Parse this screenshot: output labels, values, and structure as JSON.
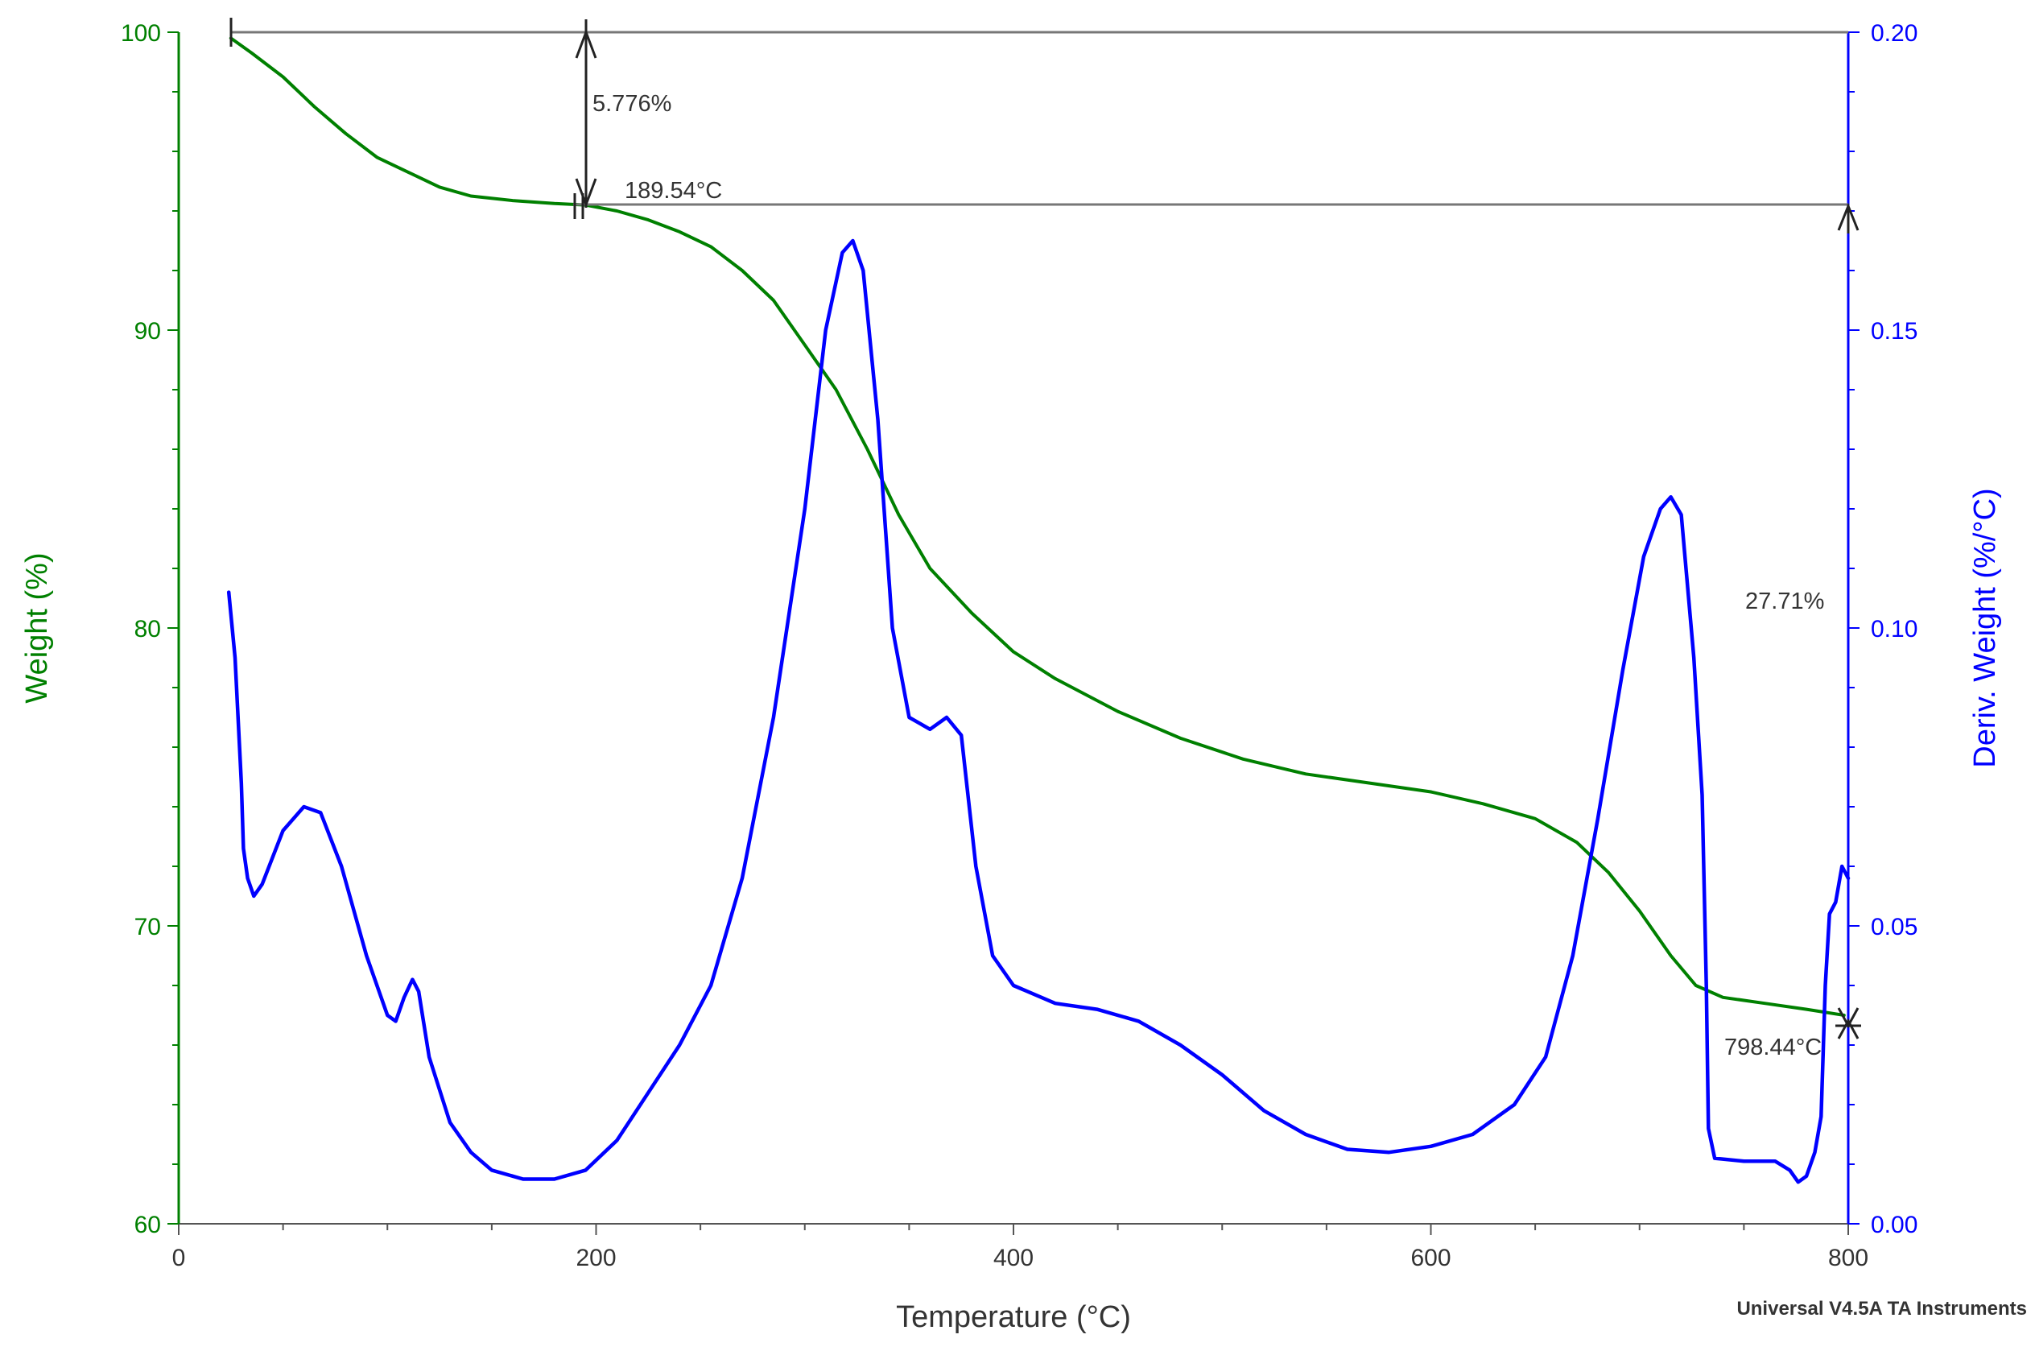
{
  "chart_data": {
    "type": "line",
    "x_axis": {
      "label": "Temperature (°C)",
      "range": [
        0,
        800
      ],
      "major_ticks": [
        0,
        200,
        400,
        600,
        800
      ],
      "minor_step": 50
    },
    "y_left": {
      "label": "Weight (%)",
      "range": [
        60,
        100
      ],
      "major_ticks": [
        60,
        70,
        80,
        90,
        100
      ],
      "minor_step": 2,
      "color": "#008000"
    },
    "y_right": {
      "label": "Deriv. Weight (%/°C)",
      "range": [
        0,
        0.2
      ],
      "major_ticks": [
        "0.00",
        "0.05",
        "0.10",
        "0.15",
        "0.20"
      ],
      "minor_step": 0.01,
      "color": "#0000ff"
    },
    "grid": false,
    "series": [
      {
        "axis": "left",
        "color": "#008000",
        "points": [
          [
            25,
            99.8
          ],
          [
            35,
            99.3
          ],
          [
            50,
            98.5
          ],
          [
            65,
            97.5
          ],
          [
            80,
            96.6
          ],
          [
            95,
            95.8
          ],
          [
            110,
            95.3
          ],
          [
            125,
            94.8
          ],
          [
            140,
            94.5
          ],
          [
            160,
            94.35
          ],
          [
            180,
            94.25
          ],
          [
            195,
            94.2
          ],
          [
            210,
            94.0
          ],
          [
            225,
            93.7
          ],
          [
            240,
            93.3
          ],
          [
            255,
            92.8
          ],
          [
            270,
            92.0
          ],
          [
            285,
            91.0
          ],
          [
            300,
            89.5
          ],
          [
            315,
            88.0
          ],
          [
            330,
            86.0
          ],
          [
            345,
            83.8
          ],
          [
            360,
            82.0
          ],
          [
            380,
            80.5
          ],
          [
            400,
            79.2
          ],
          [
            420,
            78.3
          ],
          [
            450,
            77.2
          ],
          [
            480,
            76.3
          ],
          [
            510,
            75.6
          ],
          [
            540,
            75.1
          ],
          [
            570,
            74.8
          ],
          [
            600,
            74.5
          ],
          [
            625,
            74.1
          ],
          [
            650,
            73.6
          ],
          [
            670,
            72.8
          ],
          [
            685,
            71.8
          ],
          [
            700,
            70.5
          ],
          [
            715,
            69.0
          ],
          [
            727,
            68.0
          ],
          [
            740,
            67.6
          ],
          [
            760,
            67.4
          ],
          [
            780,
            67.2
          ],
          [
            798,
            67.0
          ]
        ]
      },
      {
        "axis": "right",
        "color": "#0000ff",
        "points": [
          [
            24,
            0.106
          ],
          [
            27,
            0.095
          ],
          [
            30,
            0.074
          ],
          [
            31,
            0.063
          ],
          [
            33,
            0.058
          ],
          [
            36,
            0.055
          ],
          [
            40,
            0.057
          ],
          [
            50,
            0.066
          ],
          [
            60,
            0.07
          ],
          [
            68,
            0.069
          ],
          [
            78,
            0.06
          ],
          [
            90,
            0.045
          ],
          [
            100,
            0.035
          ],
          [
            104,
            0.034
          ],
          [
            108,
            0.038
          ],
          [
            112,
            0.041
          ],
          [
            115,
            0.039
          ],
          [
            120,
            0.028
          ],
          [
            130,
            0.017
          ],
          [
            140,
            0.012
          ],
          [
            150,
            0.009
          ],
          [
            165,
            0.0075
          ],
          [
            180,
            0.0075
          ],
          [
            195,
            0.009
          ],
          [
            210,
            0.014
          ],
          [
            225,
            0.022
          ],
          [
            240,
            0.03
          ],
          [
            255,
            0.04
          ],
          [
            270,
            0.058
          ],
          [
            285,
            0.085
          ],
          [
            300,
            0.12
          ],
          [
            310,
            0.15
          ],
          [
            318,
            0.163
          ],
          [
            323,
            0.165
          ],
          [
            328,
            0.16
          ],
          [
            335,
            0.135
          ],
          [
            342,
            0.1
          ],
          [
            350,
            0.085
          ],
          [
            360,
            0.083
          ],
          [
            368,
            0.085
          ],
          [
            375,
            0.082
          ],
          [
            382,
            0.06
          ],
          [
            390,
            0.045
          ],
          [
            400,
            0.04
          ],
          [
            420,
            0.037
          ],
          [
            440,
            0.036
          ],
          [
            460,
            0.034
          ],
          [
            480,
            0.03
          ],
          [
            500,
            0.025
          ],
          [
            520,
            0.019
          ],
          [
            540,
            0.015
          ],
          [
            560,
            0.0125
          ],
          [
            580,
            0.012
          ],
          [
            600,
            0.013
          ],
          [
            620,
            0.015
          ],
          [
            640,
            0.02
          ],
          [
            655,
            0.028
          ],
          [
            668,
            0.045
          ],
          [
            680,
            0.068
          ],
          [
            692,
            0.093
          ],
          [
            702,
            0.112
          ],
          [
            710,
            0.12
          ],
          [
            715,
            0.122
          ],
          [
            720,
            0.119
          ],
          [
            726,
            0.095
          ],
          [
            730,
            0.072
          ],
          [
            732,
            0.04
          ],
          [
            733,
            0.016
          ],
          [
            736,
            0.011
          ],
          [
            750,
            0.0105
          ],
          [
            765,
            0.0105
          ],
          [
            772,
            0.009
          ],
          [
            776,
            0.007
          ],
          [
            780,
            0.008
          ],
          [
            784,
            0.012
          ],
          [
            787,
            0.018
          ],
          [
            789,
            0.04
          ],
          [
            791,
            0.052
          ],
          [
            794,
            0.054
          ],
          [
            797,
            0.06
          ],
          [
            800,
            0.058
          ]
        ]
      }
    ],
    "annotations": {
      "step1_percent": "5.776%",
      "step1_temp": "189.54°C",
      "step2_percent": "27.71%",
      "step2_temp": "798.44°C"
    },
    "footer": "Universal V4.5A TA Instruments"
  }
}
